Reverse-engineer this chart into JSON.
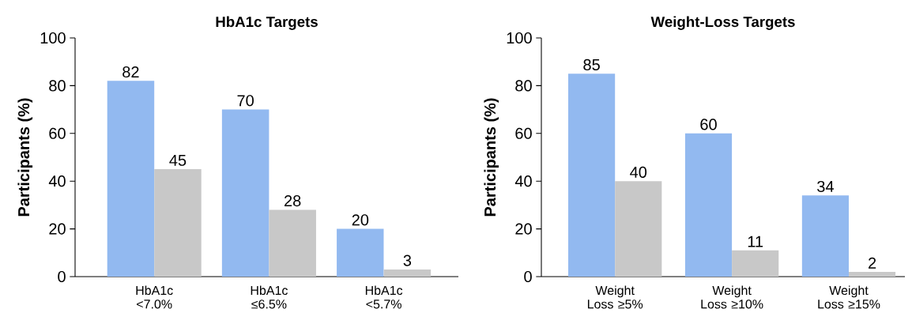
{
  "chart_data": [
    {
      "type": "bar",
      "title": "HbA1c Targets",
      "ylabel": "Participants  (%)",
      "categories": [
        "HbA1c <7.0%",
        "HbA1c ≤6.5%",
        "HbA1c <5.7%"
      ],
      "series": [
        {
          "color": "#92b9f0",
          "values": [
            82,
            70,
            20
          ]
        },
        {
          "color": "#c8c8c8",
          "values": [
            45,
            28,
            3
          ]
        }
      ],
      "ylim": [
        0,
        100
      ],
      "yticks": [
        0,
        20,
        40,
        60,
        80,
        100
      ],
      "data_labels": true
    },
    {
      "type": "bar",
      "title": "Weight-Loss Targets",
      "ylabel": "Participants  (%)",
      "categories": [
        "Weight Loss ≥5%",
        "Weight Loss ≥10%",
        "Weight Loss ≥15%"
      ],
      "series": [
        {
          "color": "#92b9f0",
          "values": [
            85,
            60,
            34
          ]
        },
        {
          "color": "#c8c8c8",
          "values": [
            40,
            11,
            2
          ]
        }
      ],
      "ylim": [
        0,
        100
      ],
      "yticks": [
        0,
        20,
        40,
        60,
        80,
        100
      ],
      "data_labels": true
    }
  ]
}
